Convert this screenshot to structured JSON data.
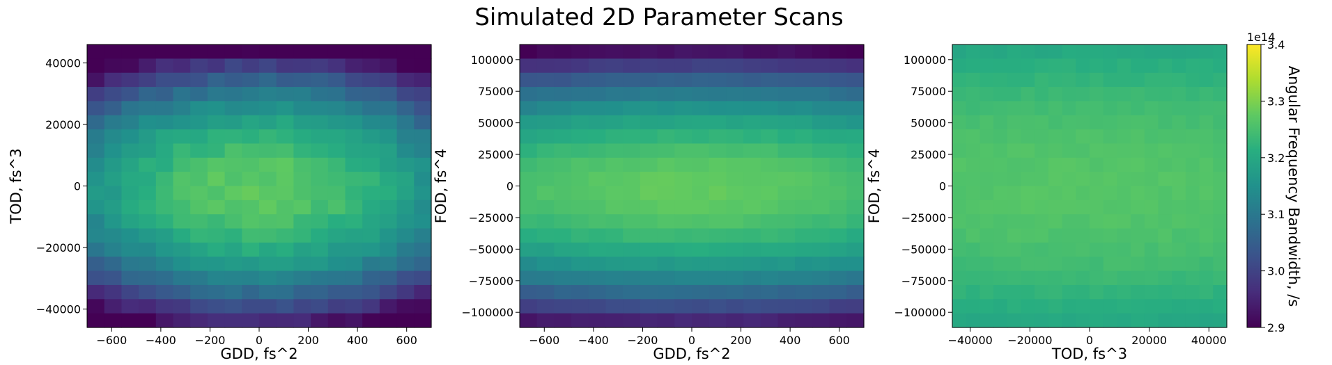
{
  "figure_title": "Simulated 2D Parameter Scans",
  "colorbar": {
    "label": "Angular Frequency Bandwidth, /s",
    "multiplier": "1e14",
    "range": [
      2.9,
      3.4
    ],
    "ticks": [
      2.9,
      3.0,
      3.1,
      3.2,
      3.3,
      3.4
    ],
    "tick_labels": [
      "2.9",
      "3.0",
      "3.1",
      "3.2",
      "3.3",
      "3.4"
    ],
    "colormap": "viridis"
  },
  "chart_data": [
    {
      "type": "heatmap",
      "xlabel": "GDD, fs^2",
      "ylabel": "TOD, fs^3",
      "xlim": [
        -700,
        700
      ],
      "ylim": [
        -46000,
        46000
      ],
      "x_ticks": [
        -600,
        -400,
        -200,
        0,
        200,
        400,
        600
      ],
      "x_tick_labels": [
        "−600",
        "−400",
        "−200",
        "0",
        "200",
        "400",
        "600"
      ],
      "y_ticks": [
        -40000,
        -20000,
        0,
        20000,
        40000
      ],
      "y_tick_labels": [
        "−40000",
        "−20000",
        "0",
        "20000",
        "40000"
      ],
      "cols": 20,
      "rows": 20,
      "value_model": {
        "peak": 3.275,
        "x_quad": 0.13,
        "y_quad": 0.35,
        "y_rise_low": 0.03
      }
    },
    {
      "type": "heatmap",
      "xlabel": "GDD, fs^2",
      "ylabel": "FOD, fs^4",
      "xlim": [
        -700,
        700
      ],
      "ylim": [
        -112000,
        112000
      ],
      "x_ticks": [
        -600,
        -400,
        -200,
        0,
        200,
        400,
        600
      ],
      "x_tick_labels": [
        "−600",
        "−400",
        "−200",
        "0",
        "200",
        "400",
        "600"
      ],
      "y_ticks": [
        -100000,
        -75000,
        -50000,
        -25000,
        0,
        25000,
        50000,
        75000,
        100000
      ],
      "y_tick_labels": [
        "−100000",
        "−75000",
        "−50000",
        "−25000",
        "0",
        "25000",
        "50000",
        "75000",
        "100000"
      ],
      "cols": 20,
      "rows": 20,
      "value_model": {
        "peak": 3.28,
        "x_quad": 0.03,
        "y_quad": 0.36,
        "y_rise_low": 0.03
      }
    },
    {
      "type": "heatmap",
      "xlabel": "TOD, fs^3",
      "ylabel": "FOD, fs^4",
      "xlim": [
        -46000,
        46000
      ],
      "ylim": [
        -112000,
        112000
      ],
      "x_ticks": [
        -40000,
        -20000,
        0,
        20000,
        40000
      ],
      "x_tick_labels": [
        "−40000",
        "−20000",
        "0",
        "20000",
        "40000"
      ],
      "y_ticks": [
        -100000,
        -75000,
        -50000,
        -25000,
        0,
        25000,
        50000,
        75000,
        100000
      ],
      "y_tick_labels": [
        "−100000",
        "−75000",
        "−50000",
        "−25000",
        "0",
        "25000",
        "50000",
        "75000",
        "100000"
      ],
      "cols": 20,
      "rows": 20,
      "value_model": {
        "peak": 3.265,
        "x_quad": 0.005,
        "y_quad": 0.07,
        "y_rise_low": 0.0
      }
    }
  ]
}
